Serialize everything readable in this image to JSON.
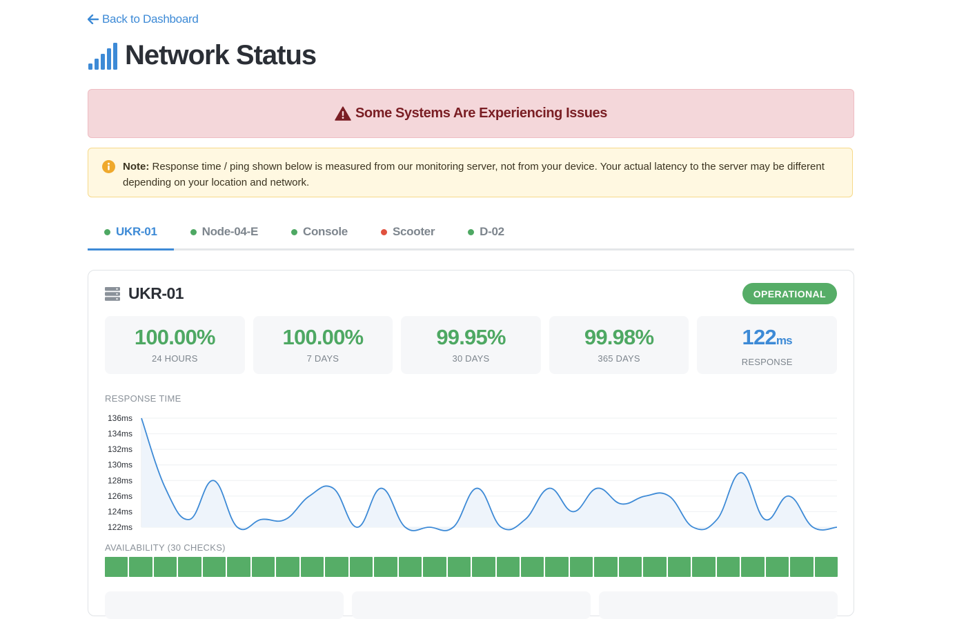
{
  "nav": {
    "back_label": "Back to Dashboard"
  },
  "header": {
    "title": "Network Status"
  },
  "alert": {
    "text": "Some Systems Are Experiencing Issues",
    "color": "#7a1e24"
  },
  "note": {
    "label": "Note:",
    "text": "Response time / ping shown below is measured from our monitoring server, not from your device. Your actual latency to the server may be different depending on your location and network."
  },
  "tabs": [
    {
      "label": "UKR-01",
      "status": "up",
      "dot_color": "#4ea863",
      "active": true
    },
    {
      "label": "Node-04-E",
      "status": "up",
      "dot_color": "#4ea863",
      "active": false
    },
    {
      "label": "Console",
      "status": "up",
      "dot_color": "#4ea863",
      "active": false
    },
    {
      "label": "Scooter",
      "status": "down",
      "dot_color": "#e0513f",
      "active": false
    },
    {
      "label": "D-02",
      "status": "up",
      "dot_color": "#4ea863",
      "active": false
    }
  ],
  "server": {
    "name": "UKR-01",
    "icon": "server-icon",
    "status_badge": "OPERATIONAL",
    "stats": [
      {
        "value": "100.00%",
        "label": "24 HOURS"
      },
      {
        "value": "100.00%",
        "label": "7 DAYS"
      },
      {
        "value": "99.95%",
        "label": "30 DAYS"
      },
      {
        "value": "99.98%",
        "label": "365 DAYS"
      },
      {
        "value": "122",
        "unit": "ms",
        "label": "RESPONSE"
      }
    ],
    "response_label": "RESPONSE TIME",
    "availability_label": "AVAILABILITY (30 CHECKS)"
  },
  "chart_data": {
    "type": "line",
    "series": [
      {
        "values": [
          136,
          127,
          123,
          128,
          122,
          123,
          123,
          126,
          127,
          122,
          127,
          122,
          122,
          122,
          127,
          122,
          123,
          127,
          124,
          127,
          125,
          126,
          126,
          122,
          123,
          129,
          123,
          126,
          122,
          122
        ]
      }
    ],
    "yticks": [
      "136ms",
      "134ms",
      "132ms",
      "130ms",
      "128ms",
      "126ms",
      "124ms",
      "122ms"
    ],
    "ylim": [
      122,
      136
    ],
    "grid": true,
    "line_color": "#3d8ad6",
    "fill_color": "#eef4fb"
  },
  "availability": {
    "checks": [
      "up",
      "up",
      "up",
      "up",
      "up",
      "up",
      "up",
      "up",
      "up",
      "up",
      "up",
      "up",
      "up",
      "up",
      "up",
      "up",
      "up",
      "up",
      "up",
      "up",
      "up",
      "up",
      "up",
      "up",
      "up",
      "up",
      "up",
      "up",
      "up",
      "up"
    ],
    "up_color": "#56ad67"
  }
}
